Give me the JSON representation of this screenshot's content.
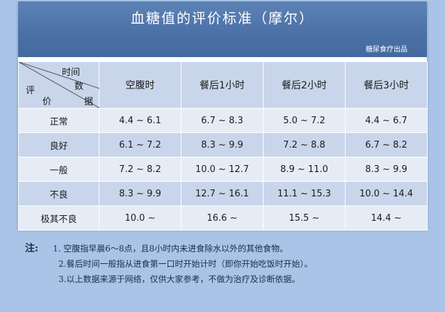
{
  "title": "血糖值的评价标准（摩尔）",
  "publisher": "糖尿食疗出品",
  "corner": {
    "top_words": [
      "时间",
      "数"
    ],
    "bottom_words": [
      "评",
      "价",
      "据"
    ]
  },
  "columns": [
    "空腹时",
    "餐后1小时",
    "餐后2小时",
    "餐后3小时"
  ],
  "rows": [
    {
      "label": "正常",
      "values": [
        "4.4 ~ 6.1",
        "6.7 ~ 8.3",
        "5.0 ~ 7.2",
        "4.4 ~ 6.7"
      ]
    },
    {
      "label": "良好",
      "values": [
        "6.1 ~ 7.2",
        "8.3 ~ 9.9",
        "7.2 ~ 8.8",
        "6.7 ~ 8.2"
      ]
    },
    {
      "label": "一般",
      "values": [
        "7.2 ~ 8.2",
        "10.0 ~ 12.7",
        "8.9 ~ 11.0",
        "8.3 ~ 9.9"
      ]
    },
    {
      "label": "不良",
      "values": [
        "8.3 ~ 9.9",
        "12.7 ~ 16.1",
        "11.1 ~ 15.3",
        "10.0 ~ 14.4"
      ]
    },
    {
      "label": "极其不良",
      "values": [
        "10.0 ~",
        "16.6 ~",
        "15.5 ~",
        "14.4 ~"
      ]
    }
  ],
  "notes": {
    "head": "注:",
    "lines": [
      "1. 空腹指早晨6～8点，且8小时内未进食除水以外的其他食物。",
      "2.餐后时间一般指从进食第一口时开始计时（即你开始吃饭时开始）。",
      "3.以上数据来源于网络，仅供大家参考，不做为治疗及诊断依据。"
    ]
  },
  "colors": {
    "background": "#a9c4e6",
    "header": "#4a70a6",
    "row_dark": "#c9d5ea",
    "row_light": "#e6ecf6"
  }
}
